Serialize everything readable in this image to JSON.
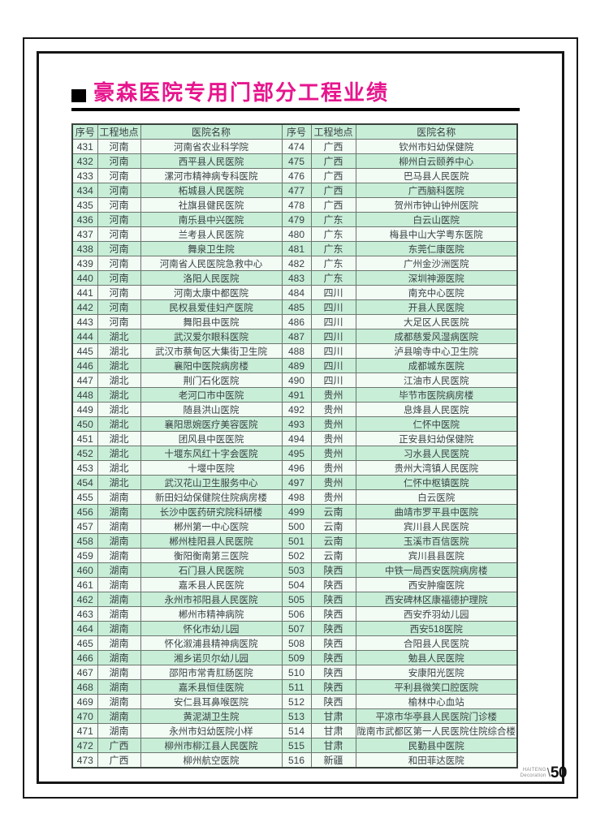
{
  "header": {
    "title": "豪森医院专用门部分工程业绩"
  },
  "table": {
    "headers": [
      "序号",
      "工程地点",
      "医院名称",
      "序号",
      "工程地点",
      "医院名称"
    ],
    "rows": [
      [
        "431",
        "河南",
        "河南省农业科学院",
        "474",
        "广西",
        "钦州市妇幼保健院"
      ],
      [
        "432",
        "河南",
        "西平县人民医院",
        "475",
        "广西",
        "柳州白云颐养中心"
      ],
      [
        "433",
        "河南",
        "漯河市精神病专科医院",
        "476",
        "广西",
        "巴马县人民医院"
      ],
      [
        "434",
        "河南",
        "柘城县人民医院",
        "477",
        "广西",
        "广西脑科医院"
      ],
      [
        "435",
        "河南",
        "社旗县健民医院",
        "478",
        "广西",
        "贺州市钟山钟州医院"
      ],
      [
        "436",
        "河南",
        "南乐县中兴医院",
        "479",
        "广东",
        "白云山医院"
      ],
      [
        "437",
        "河南",
        "兰考县人民医院",
        "480",
        "广东",
        "梅县中山大学粤东医院"
      ],
      [
        "438",
        "河南",
        "舞泉卫生院",
        "481",
        "广东",
        "东莞仁康医院"
      ],
      [
        "439",
        "河南",
        "河南省人民医院急救中心",
        "482",
        "广东",
        "广州金沙洲医院"
      ],
      [
        "440",
        "河南",
        "洛阳人民医院",
        "483",
        "广东",
        "深圳神源医院"
      ],
      [
        "441",
        "河南",
        "河南太康中都医院",
        "484",
        "四川",
        "南充中心医院"
      ],
      [
        "442",
        "河南",
        "民权县爱佳妇产医院",
        "485",
        "四川",
        "开县人民医院"
      ],
      [
        "443",
        "河南",
        "舞阳县中医院",
        "486",
        "四川",
        "大足区人民医院"
      ],
      [
        "444",
        "湖北",
        "武汉爱尔眼科医院",
        "487",
        "四川",
        "成都慈爱风湿病医院"
      ],
      [
        "445",
        "湖北",
        "武汉市蔡甸区大集街卫生院",
        "488",
        "四川",
        "泸县喻寺中心卫生院"
      ],
      [
        "446",
        "湖北",
        "襄阳中医院病房楼",
        "489",
        "四川",
        "成都城东医院"
      ],
      [
        "447",
        "湖北",
        "荆门石化医院",
        "490",
        "四川",
        "江油市人民医院"
      ],
      [
        "448",
        "湖北",
        "老河口市中医院",
        "491",
        "贵州",
        "毕节市医院病房楼"
      ],
      [
        "449",
        "湖北",
        "随县洪山医院",
        "492",
        "贵州",
        "息烽县人民医院"
      ],
      [
        "450",
        "湖北",
        "襄阳思婉医疗美容医院",
        "493",
        "贵州",
        "仁怀中医院"
      ],
      [
        "451",
        "湖北",
        "团风县中医医院",
        "494",
        "贵州",
        "正安县妇幼保健院"
      ],
      [
        "452",
        "湖北",
        "十堰东风红十字会医院",
        "495",
        "贵州",
        "习水县人民医院"
      ],
      [
        "453",
        "湖北",
        "十堰中医院",
        "496",
        "贵州",
        "贵州大湾镇人民医院"
      ],
      [
        "454",
        "湖北",
        "武汉花山卫生服务中心",
        "497",
        "贵州",
        "仁怀中枢镇医院"
      ],
      [
        "455",
        "湖南",
        "新田妇幼保健院住院病房楼",
        "498",
        "贵州",
        "白云医院"
      ],
      [
        "456",
        "湖南",
        "长沙中医药研究院科研楼",
        "499",
        "云南",
        "曲靖市罗平县中医院"
      ],
      [
        "457",
        "湖南",
        "郴州第一中心医院",
        "500",
        "云南",
        "宾川县人民医院"
      ],
      [
        "458",
        "湖南",
        "郴州桂阳县人民医院",
        "501",
        "云南",
        "玉溪市百信医院"
      ],
      [
        "459",
        "湖南",
        "衡阳衡南第三医院",
        "502",
        "云南",
        "宾川县县医院"
      ],
      [
        "460",
        "湖南",
        "石门县人民医院",
        "503",
        "陕西",
        "中铁一局西安医院病房楼"
      ],
      [
        "461",
        "湖南",
        "嘉禾县人民医院",
        "504",
        "陕西",
        "西安肿瘤医院"
      ],
      [
        "462",
        "湖南",
        "永州市祁阳县人民医院",
        "505",
        "陕西",
        "西安碑林区康福德护理院"
      ],
      [
        "463",
        "湖南",
        "郴州市精神病院",
        "506",
        "陕西",
        "西安乔羽幼儿园"
      ],
      [
        "464",
        "湖南",
        "怀化市幼儿园",
        "507",
        "陕西",
        "西安518医院"
      ],
      [
        "465",
        "湖南",
        "怀化溆浦县精神病医院",
        "508",
        "陕西",
        "合阳县人民医院"
      ],
      [
        "466",
        "湖南",
        "湘乡诺贝尔幼儿园",
        "509",
        "陕西",
        "勉县人民医院"
      ],
      [
        "467",
        "湖南",
        "邵阳市常青肛肠医院",
        "510",
        "陕西",
        "安康阳光医院"
      ],
      [
        "468",
        "湖南",
        "嘉禾县恒佳医院",
        "511",
        "陕西",
        "平利县微笑口腔医院"
      ],
      [
        "469",
        "湖南",
        "安仁县耳鼻喉医院",
        "512",
        "陕西",
        "榆林中心血站"
      ],
      [
        "470",
        "湖南",
        "黄泥湖卫生院",
        "513",
        "甘肃",
        "平凉市华亭县人民医院门诊楼"
      ],
      [
        "471",
        "湖南",
        "永州市妇幼医院小样",
        "514",
        "甘肃",
        "陇南市武都区第一人民医院住院综合楼"
      ],
      [
        "472",
        "广西",
        "柳州市柳江县人民医院",
        "515",
        "甘肃",
        "民勤县中医院"
      ],
      [
        "473",
        "广西",
        "柳州航空医院",
        "516",
        "新疆",
        "和田菲达医院"
      ]
    ]
  },
  "footer": {
    "brand_line1": "HAITENG",
    "brand_line2": "Decoration",
    "slash": "\\",
    "page_number": "50"
  },
  "colors": {
    "title": "#e7158d",
    "row_green": "#c8eed8",
    "row_light": "#f3fbf5",
    "frame": "#161616",
    "text": "#3a4245"
  }
}
